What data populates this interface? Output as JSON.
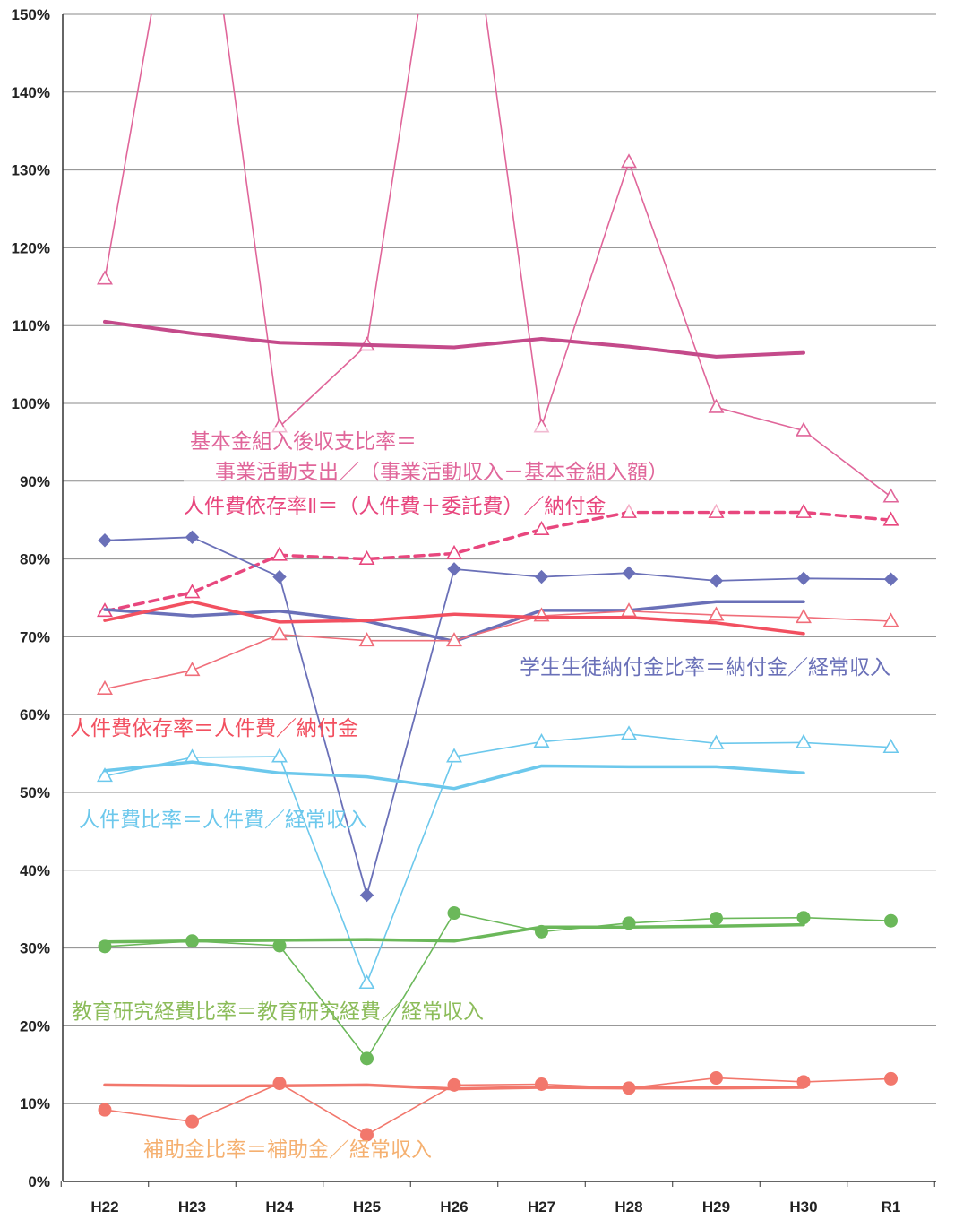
{
  "chart_data": {
    "type": "line",
    "categories": [
      "H22",
      "H23",
      "H24",
      "H25",
      "H26",
      "H27",
      "H28",
      "H29",
      "H30",
      "R1"
    ],
    "ylim": [
      0,
      150
    ],
    "yticks": [
      0,
      10,
      20,
      30,
      40,
      50,
      60,
      70,
      80,
      90,
      100,
      110,
      120,
      130,
      140,
      150
    ],
    "ytick_labels": [
      "0%",
      "10%",
      "20%",
      "30%",
      "40%",
      "50%",
      "60%",
      "70%",
      "80%",
      "90%",
      "100%",
      "110%",
      "120%",
      "130%",
      "140%",
      "150%"
    ],
    "grid": true,
    "series": [
      {
        "color": "#e0669a",
        "marker": "triangle",
        "width": 1.6,
        "values": [
          116,
          180,
          97,
          107.5,
          180,
          97,
          131,
          99.5,
          96.5,
          88
        ]
      },
      {
        "color": "#c44a8a",
        "marker": "none",
        "width": 4,
        "values": [
          110.5,
          109,
          107.8,
          107.5,
          107.2,
          108.3,
          107.3,
          106,
          106.5,
          null
        ]
      },
      {
        "color": "#e8477e",
        "marker": "triangle",
        "width": 3.5,
        "dash": "10,7",
        "values": [
          73.3,
          75.7,
          80.5,
          80,
          80.7,
          83.8,
          86,
          86,
          86,
          85
        ]
      },
      {
        "color": "#6a70b8",
        "marker": "diamond",
        "width": 1.8,
        "values": [
          82.4,
          82.8,
          77.7,
          36.8,
          78.7,
          77.7,
          78.2,
          77.2,
          77.5,
          77.4
        ]
      },
      {
        "color": "#6a70b8",
        "marker": "none",
        "width": 3.5,
        "values": [
          73.5,
          72.7,
          73.3,
          72,
          69.4,
          73.4,
          73.4,
          74.5,
          74.5,
          null
        ]
      },
      {
        "color": "#f06e7a",
        "marker": "triangle",
        "width": 1.6,
        "values": [
          63.3,
          65.7,
          70.3,
          69.5,
          69.5,
          72.7,
          73.3,
          72.8,
          72.5,
          72
        ]
      },
      {
        "color": "#f25060",
        "marker": "none",
        "width": 3.5,
        "values": [
          72.1,
          74.5,
          71.9,
          72.1,
          72.9,
          72.5,
          72.5,
          71.8,
          70.4,
          null
        ]
      },
      {
        "color": "#6cc8ec",
        "marker": "triangle",
        "width": 1.6,
        "values": [
          52.1,
          54.5,
          54.6,
          25.5,
          54.6,
          56.5,
          57.5,
          56.3,
          56.4,
          55.8
        ]
      },
      {
        "color": "#6cc8ec",
        "marker": "none",
        "width": 3.5,
        "values": [
          52.8,
          53.9,
          52.5,
          52,
          50.5,
          53.4,
          53.3,
          53.3,
          52.5,
          null
        ]
      },
      {
        "color": "#6bb85a",
        "marker": "circle",
        "width": 1.6,
        "values": [
          30.2,
          30.9,
          30.3,
          15.8,
          34.5,
          32.1,
          33.2,
          33.8,
          33.9,
          33.5
        ]
      },
      {
        "color": "#6bb85a",
        "marker": "none",
        "width": 3.5,
        "values": [
          30.8,
          30.9,
          31,
          31.1,
          30.9,
          32.7,
          32.7,
          32.8,
          33,
          null
        ]
      },
      {
        "color": "#f2776c",
        "marker": "circle",
        "width": 1.6,
        "values": [
          9.2,
          7.7,
          12.6,
          6,
          12.4,
          12.5,
          12,
          13.3,
          12.8,
          13.2
        ]
      },
      {
        "color": "#f2776c",
        "marker": "none",
        "width": 3.5,
        "values": [
          12.4,
          12.3,
          12.3,
          12.4,
          11.9,
          12.1,
          12,
          12,
          12.1,
          null
        ]
      }
    ],
    "annotations": [
      {
        "text": "基本金組入後収支比率＝",
        "color": "#e0669a"
      },
      {
        "text": "事業活動支出／（事業活動収入－基本金組入額）",
        "color": "#e0669a"
      },
      {
        "text": "人件費依存率Ⅱ＝（人件費＋委託費）／納付金",
        "color": "#e8477e"
      },
      {
        "text": "学生生徒納付金比率＝納付金／経常収入",
        "color": "#6a70b8"
      },
      {
        "text": "人件費依存率＝人件費／納付金",
        "color": "#f25060"
      },
      {
        "text": "人件費比率＝人件費／経常収入",
        "color": "#6cc8ec"
      },
      {
        "text": "教育研究経費比率＝教育研究経費／経常収入",
        "color": "#8cbc5a"
      },
      {
        "text": "補助金比率＝補助金／経常収入",
        "color": "#f5b070"
      }
    ]
  }
}
